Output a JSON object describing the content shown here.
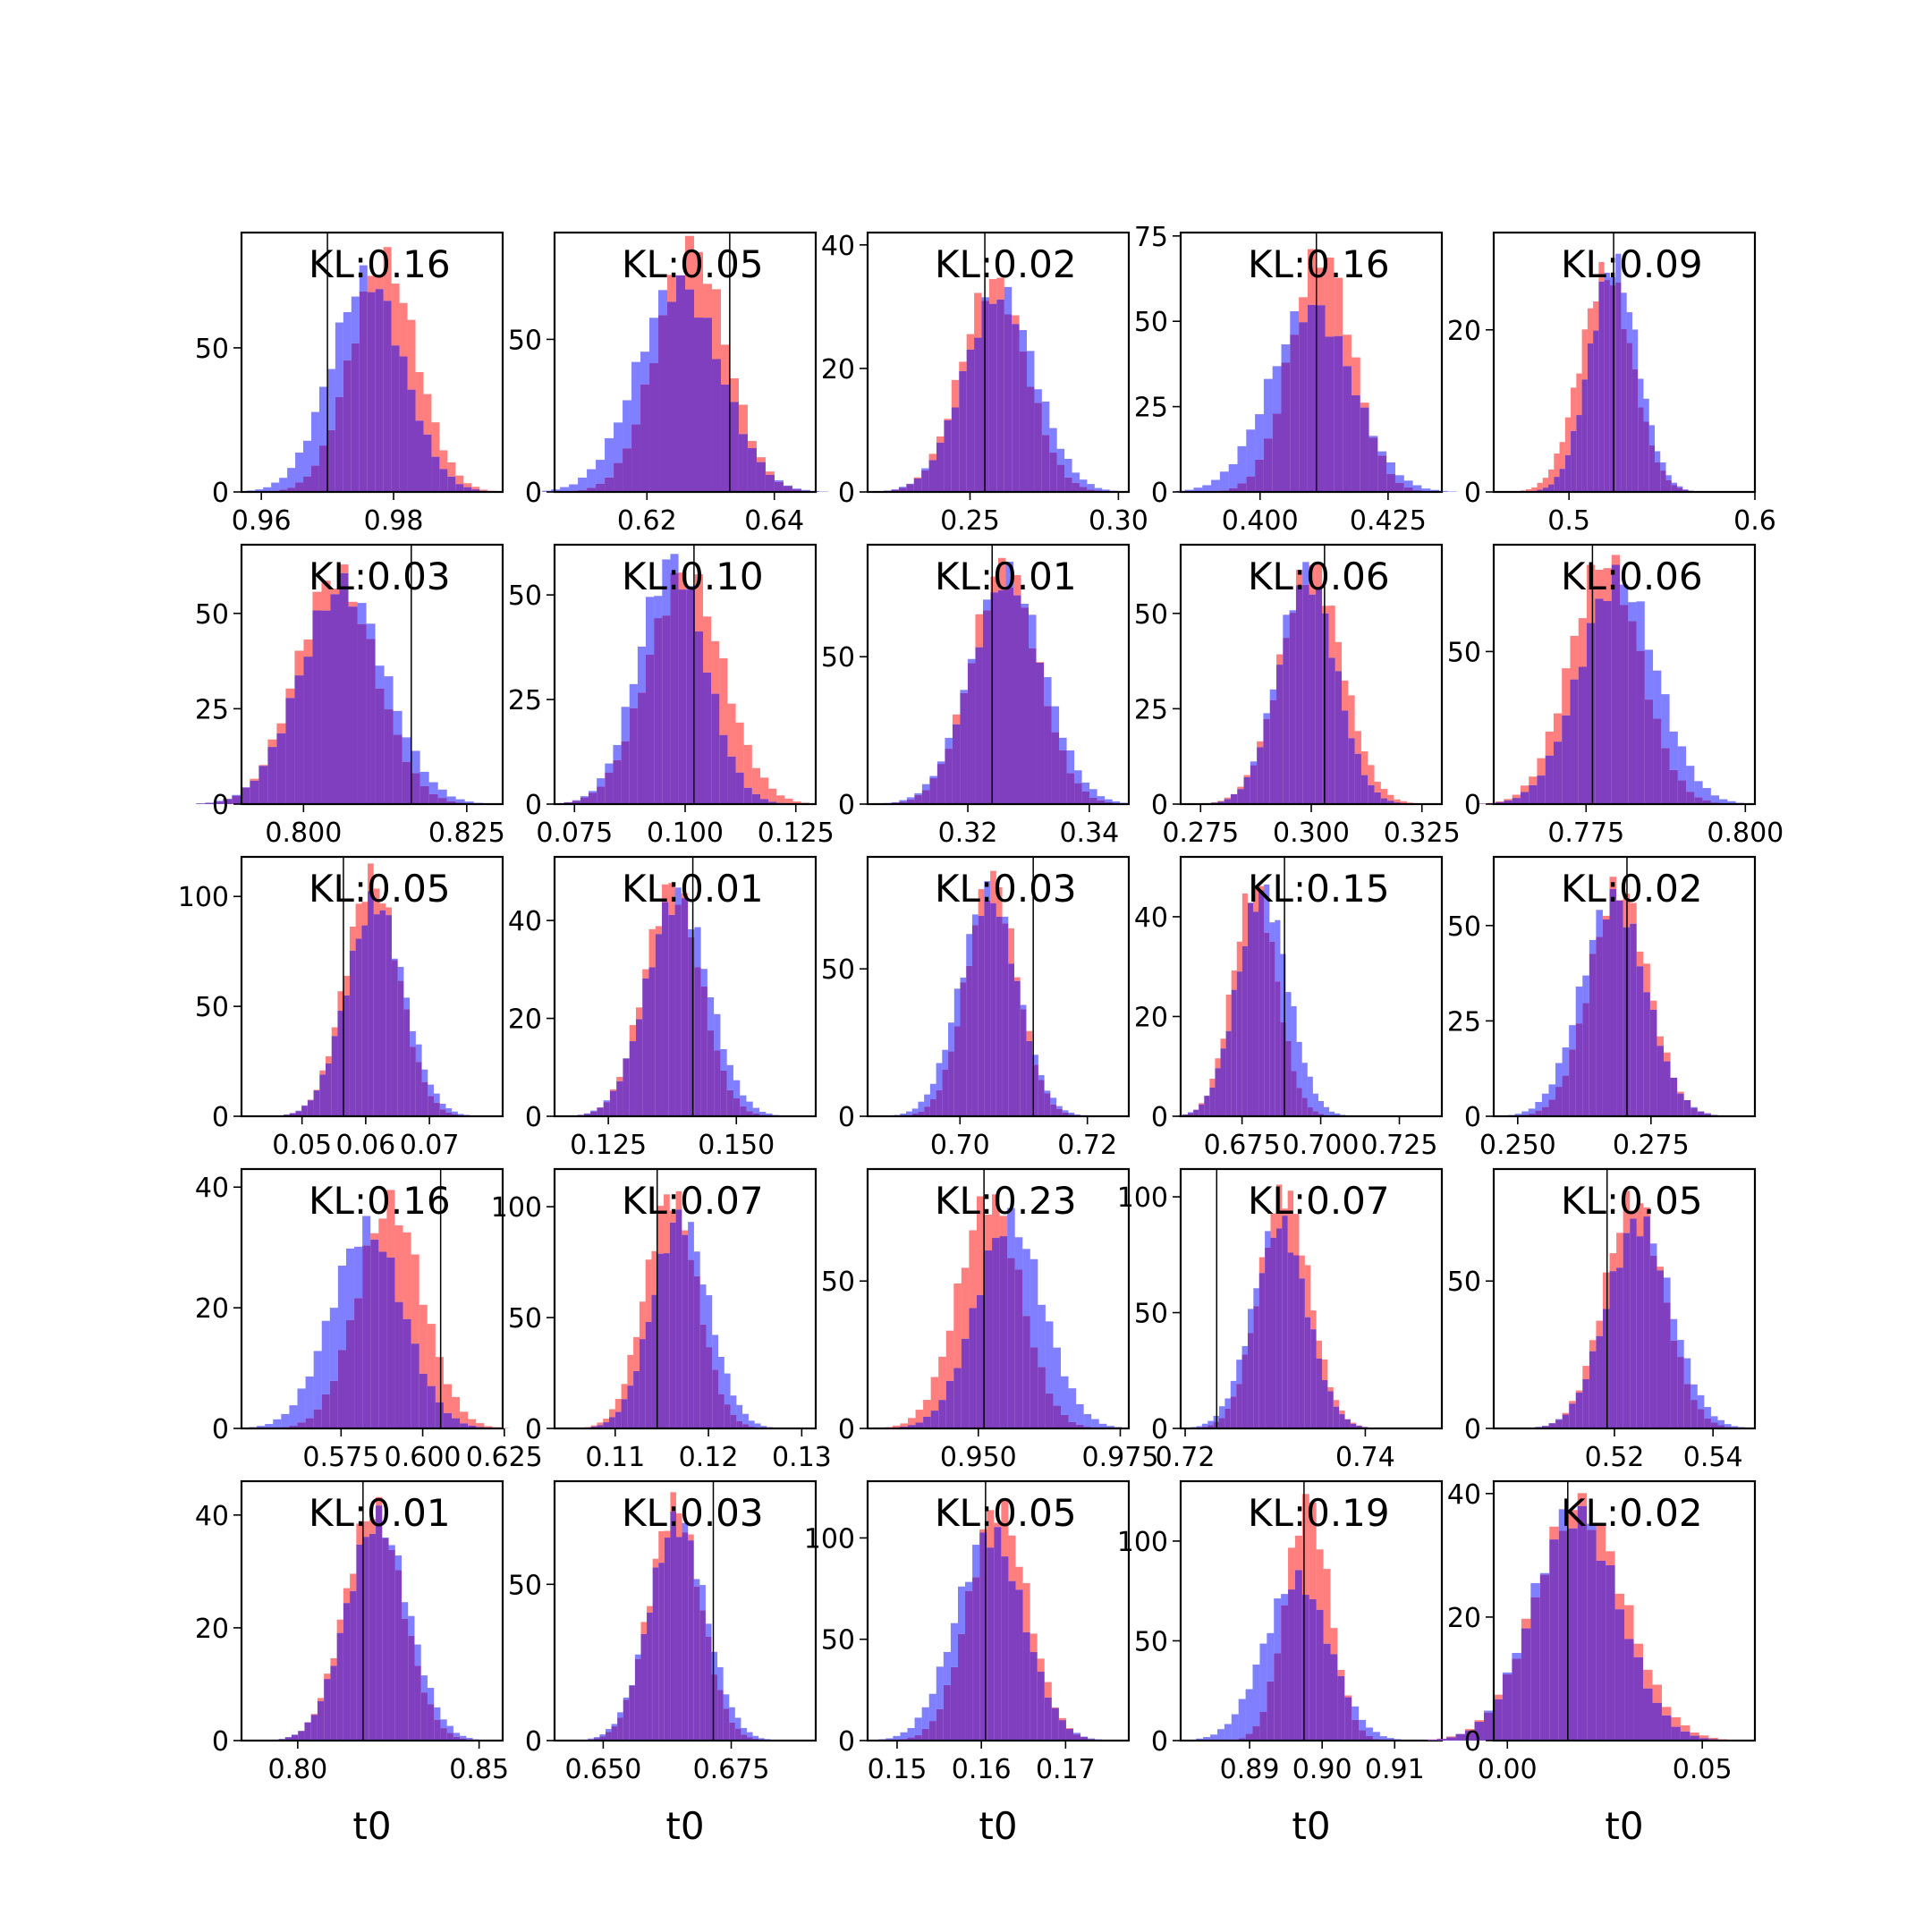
{
  "figure": {
    "colors": {
      "red": "#ff0000",
      "blue": "#0000ff",
      "overlap": "#7f3fbf",
      "truth": "#000000"
    },
    "panels": [
      {
        "kl": "KL:0.16",
        "xlim": [
          0.957,
          0.9965
        ],
        "ylim": [
          0,
          90
        ],
        "xticks": [
          0.96,
          0.98
        ],
        "xtick_labels": [
          "0.96",
          "0.98"
        ],
        "yticks": [
          0,
          50
        ],
        "ytick_labels": [
          "0",
          "50"
        ],
        "truth": 0.97,
        "red": {
          "mu": 0.9785,
          "sd": 0.005,
          "peak": 80
        },
        "blue": {
          "mu": 0.976,
          "sd": 0.0055,
          "peak": 74
        },
        "xlabel": ""
      },
      {
        "kl": "KL:0.05",
        "xlim": [
          0.6055,
          0.6465
        ],
        "ylim": [
          0,
          85
        ],
        "xticks": [
          0.62,
          0.64
        ],
        "xtick_labels": [
          "0.62",
          "0.64"
        ],
        "yticks": [
          0,
          50
        ],
        "ytick_labels": [
          "0",
          "50"
        ],
        "truth": 0.633,
        "red": {
          "mu": 0.627,
          "sd": 0.0055,
          "peak": 80
        },
        "blue": {
          "mu": 0.625,
          "sd": 0.0065,
          "peak": 68
        },
        "xlabel": ""
      },
      {
        "kl": "KL:0.02",
        "xlim": [
          0.2155,
          0.3035
        ],
        "ylim": [
          0,
          42
        ],
        "xticks": [
          0.25,
          0.3
        ],
        "xtick_labels": [
          "0.25",
          "0.30"
        ],
        "yticks": [
          0,
          20,
          40
        ],
        "ytick_labels": [
          "0",
          "20",
          "40"
        ],
        "truth": 0.255,
        "red": {
          "mu": 0.258,
          "sd": 0.011,
          "peak": 34
        },
        "blue": {
          "mu": 0.26,
          "sd": 0.012,
          "peak": 32
        },
        "xlabel": ""
      },
      {
        "kl": "KL:0.16",
        "xlim": [
          0.3845,
          0.4355
        ],
        "ylim": [
          0,
          76
        ],
        "xticks": [
          0.4,
          0.425
        ],
        "xtick_labels": [
          "0.400",
          "0.425"
        ],
        "yticks": [
          0,
          25,
          50,
          75
        ],
        "ytick_labels": [
          "0",
          "25",
          "50",
          "75"
        ],
        "truth": 0.411,
        "red": {
          "mu": 0.412,
          "sd": 0.006,
          "peak": 70
        },
        "blue": {
          "mu": 0.41,
          "sd": 0.008,
          "peak": 54
        },
        "xlabel": ""
      },
      {
        "kl": "KL:0.09",
        "xlim": [
          0.4595,
          0.6
        ],
        "ylim": [
          0,
          32
        ],
        "xticks": [
          0.5,
          0.6
        ],
        "xtick_labels": [
          "0.5",
          "0.6"
        ],
        "yticks": [
          0,
          20
        ],
        "ytick_labels": [
          "0",
          "20"
        ],
        "truth": 0.524,
        "red": {
          "mu": 0.52,
          "sd": 0.014,
          "peak": 27
        },
        "blue": {
          "mu": 0.524,
          "sd": 0.013,
          "peak": 28
        },
        "xlabel": ""
      },
      {
        "kl": "KL:0.03",
        "xlim": [
          0.7905,
          0.8305
        ],
        "ylim": [
          0,
          68
        ],
        "xticks": [
          0.8,
          0.825
        ],
        "xtick_labels": [
          "0.800",
          "0.825"
        ],
        "yticks": [
          0,
          25,
          50
        ],
        "ytick_labels": [
          "0",
          "25",
          "50"
        ],
        "truth": 0.8165,
        "red": {
          "mu": 0.805,
          "sd": 0.006,
          "peak": 60
        },
        "blue": {
          "mu": 0.806,
          "sd": 0.0065,
          "peak": 57
        },
        "xlabel": ""
      },
      {
        "kl": "KL:0.10",
        "xlim": [
          0.0705,
          0.1295
        ],
        "ylim": [
          0,
          62
        ],
        "xticks": [
          0.075,
          0.1,
          0.125
        ],
        "xtick_labels": [
          "0.075",
          "0.100",
          "0.125"
        ],
        "yticks": [
          0,
          25,
          50
        ],
        "ytick_labels": [
          "0",
          "25",
          "50"
        ],
        "truth": 0.102,
        "red": {
          "mu": 0.1,
          "sd": 0.0085,
          "peak": 55
        },
        "blue": {
          "mu": 0.097,
          "sd": 0.0075,
          "peak": 58
        },
        "xlabel": ""
      },
      {
        "kl": "KL:0.01",
        "xlim": [
          0.3035,
          0.3465
        ],
        "ylim": [
          0,
          88
        ],
        "xticks": [
          0.32,
          0.34
        ],
        "xtick_labels": [
          "0.32",
          "0.34"
        ],
        "yticks": [
          0,
          50
        ],
        "ytick_labels": [
          "0",
          "50"
        ],
        "truth": 0.324,
        "red": {
          "mu": 0.326,
          "sd": 0.0055,
          "peak": 80
        },
        "blue": {
          "mu": 0.3265,
          "sd": 0.006,
          "peak": 77
        },
        "xlabel": ""
      },
      {
        "kl": "KL:0.06",
        "xlim": [
          0.2705,
          0.3295
        ],
        "ylim": [
          0,
          68
        ],
        "xticks": [
          0.275,
          0.3,
          0.325
        ],
        "xtick_labels": [
          "0.275",
          "0.300",
          "0.325"
        ],
        "yticks": [
          0,
          25,
          50
        ],
        "ytick_labels": [
          "0",
          "25",
          "50"
        ],
        "truth": 0.303,
        "red": {
          "mu": 0.3,
          "sd": 0.007,
          "peak": 62
        },
        "blue": {
          "mu": 0.299,
          "sd": 0.0065,
          "peak": 60
        },
        "xlabel": ""
      },
      {
        "kl": "KL:0.06",
        "xlim": [
          0.7605,
          0.8015
        ],
        "ylim": [
          0,
          85
        ],
        "xticks": [
          0.775,
          0.8
        ],
        "xtick_labels": [
          "0.775",
          "0.800"
        ],
        "yticks": [
          0,
          50
        ],
        "ytick_labels": [
          "0",
          "50"
        ],
        "truth": 0.776,
        "red": {
          "mu": 0.778,
          "sd": 0.0055,
          "peak": 80
        },
        "blue": {
          "mu": 0.78,
          "sd": 0.006,
          "peak": 74
        },
        "xlabel": ""
      },
      {
        "kl": "KL:0.05",
        "xlim": [
          0.0405,
          0.0815
        ],
        "ylim": [
          0,
          118
        ],
        "xticks": [
          0.05,
          0.06,
          0.07
        ],
        "xtick_labels": [
          "0.05",
          "0.06",
          "0.07"
        ],
        "yticks": [
          0,
          50,
          100
        ],
        "ytick_labels": [
          "0",
          "50",
          "100"
        ],
        "truth": 0.0565,
        "red": {
          "mu": 0.061,
          "sd": 0.0042,
          "peak": 108
        },
        "blue": {
          "mu": 0.0615,
          "sd": 0.0045,
          "peak": 97
        },
        "xlabel": ""
      },
      {
        "kl": "KL:0.01",
        "xlim": [
          0.1145,
          0.1655
        ],
        "ylim": [
          0,
          53
        ],
        "xticks": [
          0.125,
          0.15
        ],
        "xtick_labels": [
          "0.125",
          "0.150"
        ],
        "yticks": [
          0,
          20,
          40
        ],
        "ytick_labels": [
          "0",
          "20",
          "40"
        ],
        "truth": 0.1415,
        "red": {
          "mu": 0.1375,
          "sd": 0.0055,
          "peak": 47
        },
        "blue": {
          "mu": 0.1385,
          "sd": 0.006,
          "peak": 45
        },
        "xlabel": ""
      },
      {
        "kl": "KL:0.03",
        "xlim": [
          0.6855,
          0.7265
        ],
        "ylim": [
          0,
          88
        ],
        "xticks": [
          0.7,
          0.72
        ],
        "xtick_labels": [
          "0.70",
          "0.72"
        ],
        "yticks": [
          0,
          50
        ],
        "ytick_labels": [
          "0",
          "50"
        ],
        "truth": 0.7115,
        "red": {
          "mu": 0.705,
          "sd": 0.004,
          "peak": 80
        },
        "blue": {
          "mu": 0.7045,
          "sd": 0.0045,
          "peak": 75
        },
        "xlabel": ""
      },
      {
        "kl": "KL:0.15",
        "xlim": [
          0.6555,
          0.7385
        ],
        "ylim": [
          0,
          52
        ],
        "xticks": [
          0.675,
          0.7,
          0.725
        ],
        "xtick_labels": [
          "0.675",
          "0.700",
          "0.725"
        ],
        "yticks": [
          0,
          20,
          40
        ],
        "ytick_labels": [
          "0",
          "20",
          "40"
        ],
        "truth": 0.6885,
        "red": {
          "mu": 0.679,
          "sd": 0.007,
          "peak": 46
        },
        "blue": {
          "mu": 0.6815,
          "sd": 0.008,
          "peak": 45
        },
        "xlabel": ""
      },
      {
        "kl": "KL:0.02",
        "xlim": [
          0.2455,
          0.2945
        ],
        "ylim": [
          0,
          68
        ],
        "xticks": [
          0.25,
          0.275
        ],
        "xtick_labels": [
          "0.250",
          "0.275"
        ],
        "yticks": [
          0,
          25,
          50
        ],
        "ytick_labels": [
          "0",
          "25",
          "50"
        ],
        "truth": 0.2705,
        "red": {
          "mu": 0.269,
          "sd": 0.0055,
          "peak": 60
        },
        "blue": {
          "mu": 0.268,
          "sd": 0.006,
          "peak": 57
        },
        "xlabel": ""
      },
      {
        "kl": "KL:0.16",
        "xlim": [
          0.5445,
          0.6245
        ],
        "ylim": [
          0,
          43
        ],
        "xticks": [
          0.575,
          0.6,
          0.625
        ],
        "xtick_labels": [
          "0.575",
          "0.600",
          "0.625"
        ],
        "yticks": [
          0,
          20,
          40
        ],
        "ytick_labels": [
          "0",
          "20",
          "40"
        ],
        "truth": 0.6055,
        "red": {
          "mu": 0.59,
          "sd": 0.01,
          "peak": 37
        },
        "blue": {
          "mu": 0.583,
          "sd": 0.011,
          "peak": 33
        },
        "xlabel": ""
      },
      {
        "kl": "KL:0.07",
        "xlim": [
          0.1035,
          0.1315
        ],
        "ylim": [
          0,
          117
        ],
        "xticks": [
          0.11,
          0.12,
          0.13
        ],
        "xtick_labels": [
          "0.11",
          "0.12",
          "0.13"
        ],
        "yticks": [
          0,
          50,
          100
        ],
        "ytick_labels": [
          "0",
          "50",
          "100"
        ],
        "truth": 0.1145,
        "red": {
          "mu": 0.116,
          "sd": 0.0028,
          "peak": 105
        },
        "blue": {
          "mu": 0.117,
          "sd": 0.003,
          "peak": 95
        },
        "xlabel": ""
      },
      {
        "kl": "KL:0.23",
        "xlim": [
          0.9305,
          0.9765
        ],
        "ylim": [
          0,
          88
        ],
        "xticks": [
          0.95,
          0.975
        ],
        "xtick_labels": [
          "0.950",
          "0.975"
        ],
        "yticks": [
          0,
          50
        ],
        "ytick_labels": [
          "0",
          "50"
        ],
        "truth": 0.951,
        "red": {
          "mu": 0.952,
          "sd": 0.0055,
          "peak": 78
        },
        "blue": {
          "mu": 0.9555,
          "sd": 0.006,
          "peak": 70
        },
        "xlabel": ""
      },
      {
        "kl": "KL:0.07",
        "xlim": [
          0.7195,
          0.7485
        ],
        "ylim": [
          0,
          112
        ],
        "xticks": [
          0.72,
          0.74
        ],
        "xtick_labels": [
          "0.72",
          "0.74"
        ],
        "yticks": [
          0,
          50,
          100
        ],
        "ytick_labels": [
          "0",
          "50",
          "100"
        ],
        "truth": 0.7235,
        "red": {
          "mu": 0.731,
          "sd": 0.0028,
          "peak": 102
        },
        "blue": {
          "mu": 0.7305,
          "sd": 0.003,
          "peak": 88
        },
        "xlabel": ""
      },
      {
        "kl": "KL:0.05",
        "xlim": [
          0.4955,
          0.5485
        ],
        "ylim": [
          0,
          88
        ],
        "xticks": [
          0.52,
          0.54
        ],
        "xtick_labels": [
          "0.52",
          "0.54"
        ],
        "yticks": [
          0,
          50
        ],
        "ytick_labels": [
          "0",
          "50"
        ],
        "truth": 0.5185,
        "red": {
          "mu": 0.524,
          "sd": 0.006,
          "peak": 78
        },
        "blue": {
          "mu": 0.525,
          "sd": 0.0065,
          "peak": 70
        },
        "xlabel": ""
      },
      {
        "kl": "KL:0.01",
        "xlim": [
          0.7845,
          0.8565
        ],
        "ylim": [
          0,
          46
        ],
        "xticks": [
          0.8,
          0.85
        ],
        "xtick_labels": [
          "0.80",
          "0.85"
        ],
        "yticks": [
          0,
          20,
          40
        ],
        "ytick_labels": [
          "0",
          "20",
          "40"
        ],
        "truth": 0.818,
        "red": {
          "mu": 0.821,
          "sd": 0.008,
          "peak": 41
        },
        "blue": {
          "mu": 0.822,
          "sd": 0.0085,
          "peak": 39
        },
        "xlabel": "t0"
      },
      {
        "kl": "KL:0.03",
        "xlim": [
          0.6405,
          0.6915
        ],
        "ylim": [
          0,
          83
        ],
        "xticks": [
          0.65,
          0.675
        ],
        "xtick_labels": [
          "0.650",
          "0.675"
        ],
        "yticks": [
          0,
          50
        ],
        "ytick_labels": [
          "0",
          "50"
        ],
        "truth": 0.6715,
        "red": {
          "mu": 0.664,
          "sd": 0.005,
          "peak": 75
        },
        "blue": {
          "mu": 0.6645,
          "sd": 0.0055,
          "peak": 70
        },
        "xlabel": "t0"
      },
      {
        "kl": "KL:0.05",
        "xlim": [
          0.1465,
          0.1775
        ],
        "ylim": [
          0,
          128
        ],
        "xticks": [
          0.15,
          0.16,
          0.17
        ],
        "xtick_labels": [
          "0.15",
          "0.16",
          "0.17"
        ],
        "yticks": [
          0,
          50,
          100
        ],
        "ytick_labels": [
          "0",
          "50",
          "100"
        ],
        "truth": 0.1605,
        "red": {
          "mu": 0.162,
          "sd": 0.0035,
          "peak": 115
        },
        "blue": {
          "mu": 0.161,
          "sd": 0.004,
          "peak": 102
        },
        "xlabel": "t0"
      },
      {
        "kl": "KL:0.19",
        "xlim": [
          0.8805,
          0.9165
        ],
        "ylim": [
          0,
          130
        ],
        "xticks": [
          0.89,
          0.9,
          0.91
        ],
        "xtick_labels": [
          "0.89",
          "0.90",
          "0.91"
        ],
        "yticks": [
          0,
          50,
          100
        ],
        "ytick_labels": [
          "0",
          "50",
          "100"
        ],
        "truth": 0.8975,
        "red": {
          "mu": 0.898,
          "sd": 0.003,
          "peak": 120
        },
        "blue": {
          "mu": 0.8965,
          "sd": 0.0045,
          "peak": 80
        },
        "xlabel": "t0"
      },
      {
        "kl": "KL:0.02",
        "xlim": [
          -0.0035,
          0.0635
        ],
        "ylim": [
          0,
          42
        ],
        "xticks": [
          0,
          0.05
        ],
        "xtick_labels": [
          "0.00",
          "0.05"
        ],
        "yticks": [
          0,
          20,
          40
        ],
        "ytick_labels": [
          "0",
          "20",
          "40"
        ],
        "truth": 0.0155,
        "red": {
          "mu": 0.0185,
          "sd": 0.0115,
          "peak": 38
        },
        "blue": {
          "mu": 0.0175,
          "sd": 0.011,
          "peak": 37
        },
        "xlabel": "t0"
      }
    ]
  }
}
